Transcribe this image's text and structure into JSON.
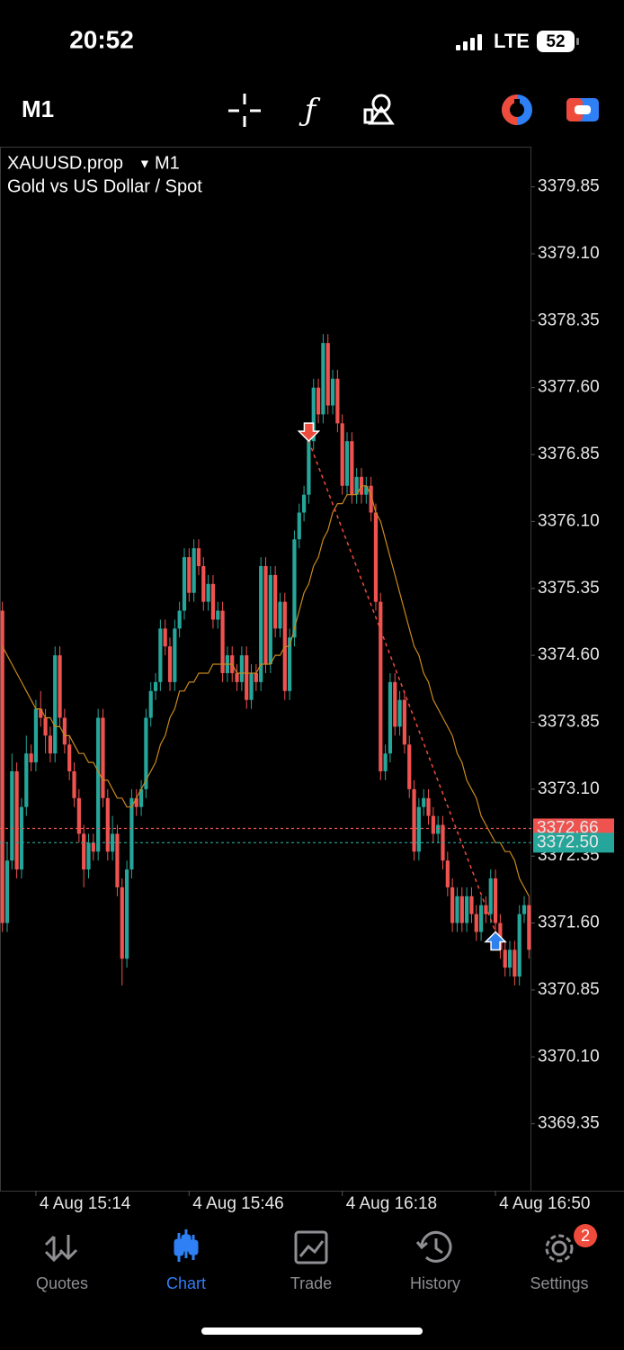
{
  "status_bar": {
    "time": "20:52",
    "network": "LTE",
    "battery": "52"
  },
  "toolbar": {
    "timeframe": "M1"
  },
  "chart_data": {
    "type": "candlestick",
    "symbol": "XAUUSD.prop",
    "timeframe": "M1",
    "description": "Gold vs US Dollar / Spot",
    "up_color": "#26a69a",
    "down_color": "#ef5350",
    "ma_color": "#c98a1e",
    "ylim": [
      3368.6,
      3380.3
    ],
    "yticks": [
      3379.85,
      {
        "value": 3379.1,
        "label": "3379.10"
      },
      3378.35,
      {
        "value": 3377.6,
        "label": "3377.60"
      },
      3376.85,
      {
        "value": 3376.1,
        "label": "3376.10"
      },
      3375.35,
      {
        "value": 3374.6,
        "label": "3374.60"
      },
      3373.85,
      {
        "value": 3373.1,
        "label": "3373.10"
      },
      3372.35,
      {
        "value": 3371.6,
        "label": "3371.60"
      },
      3370.85,
      {
        "value": 3370.1,
        "label": "3370.10"
      },
      3369.35
    ],
    "ask": 3372.66,
    "ask_color": "#ef5350",
    "bid": {
      "value": 3372.5,
      "label": "3372.50"
    },
    "bid_color": "#26a69a",
    "deal": {
      "entry": 3377.0,
      "exit": 3371.5,
      "entry_bar": 64,
      "exit_bar": 103,
      "entry_color": "#ef4b3c",
      "exit_color": "#2f80ed"
    },
    "categories": [
      null,
      null,
      null,
      null,
      null,
      null,
      null,
      "4 Aug 15:14",
      null,
      null,
      null,
      null,
      null,
      null,
      null,
      null,
      null,
      null,
      null,
      null,
      null,
      null,
      null,
      null,
      null,
      null,
      null,
      null,
      null,
      null,
      null,
      null,
      null,
      null,
      null,
      null,
      null,
      null,
      null,
      "4 Aug 15:46",
      null,
      null,
      null,
      null,
      null,
      null,
      null,
      null,
      null,
      null,
      null,
      null,
      null,
      null,
      null,
      null,
      null,
      null,
      null,
      null,
      null,
      null,
      null,
      null,
      null,
      null,
      null,
      null,
      null,
      null,
      null,
      "4 Aug 16:18",
      null,
      null,
      null,
      null,
      null,
      null,
      null,
      null,
      null,
      null,
      null,
      null,
      null,
      null,
      null,
      null,
      null,
      null,
      null,
      null,
      null,
      null,
      null,
      null,
      null,
      null,
      null,
      null,
      null,
      null,
      null,
      "4 Aug 16:50",
      null,
      null,
      null,
      null,
      null,
      null,
      null
    ],
    "ohlc": [
      [
        3375.1,
        3375.2,
        3371.5,
        3371.6
      ],
      [
        3371.6,
        3372.5,
        3371.5,
        3372.3
      ],
      [
        3372.3,
        3373.5,
        3372.2,
        3373.3
      ],
      [
        3373.3,
        3373.4,
        3372.1,
        3372.2
      ],
      [
        3372.2,
        3373.0,
        3372.1,
        3372.9
      ],
      [
        3372.9,
        3373.7,
        3372.8,
        3373.5
      ],
      [
        3373.5,
        3373.6,
        3373.3,
        3373.4
      ],
      [
        3373.4,
        3374.1,
        3373.3,
        3374.0
      ],
      [
        3374.0,
        3374.2,
        3373.8,
        3373.9
      ],
      [
        3373.9,
        3374.0,
        3373.5,
        3373.7
      ],
      [
        3373.7,
        3373.8,
        3373.4,
        3373.5
      ],
      [
        3373.5,
        3374.7,
        3373.4,
        3374.6
      ],
      [
        3374.6,
        3374.7,
        3373.8,
        3373.9
      ],
      [
        3373.9,
        3374.0,
        3373.5,
        3373.6
      ],
      [
        3373.6,
        3373.7,
        3373.2,
        3373.3
      ],
      [
        3373.3,
        3373.4,
        3372.9,
        3373.0
      ],
      [
        3373.0,
        3373.1,
        3372.5,
        3372.6
      ],
      [
        3372.6,
        3372.7,
        3372.0,
        3372.2
      ],
      [
        3372.2,
        3372.6,
        3372.1,
        3372.5
      ],
      [
        3372.5,
        3372.6,
        3372.3,
        3372.4
      ],
      [
        3372.4,
        3374.0,
        3372.3,
        3373.9
      ],
      [
        3373.9,
        3374.0,
        3372.9,
        3373.0
      ],
      [
        3373.0,
        3373.1,
        3372.3,
        3372.4
      ],
      [
        3372.4,
        3372.8,
        3372.3,
        3372.6
      ],
      [
        3372.6,
        3372.7,
        3371.9,
        3372.0
      ],
      [
        3372.0,
        3372.1,
        3370.9,
        3371.2
      ],
      [
        3371.2,
        3372.3,
        3371.1,
        3372.2
      ],
      [
        3372.2,
        3373.1,
        3372.1,
        3373.0
      ],
      [
        3373.0,
        3373.1,
        3372.8,
        3372.9
      ],
      [
        3372.9,
        3373.2,
        3372.8,
        3373.1
      ],
      [
        3373.1,
        3374.0,
        3373.0,
        3373.9
      ],
      [
        3373.9,
        3374.3,
        3373.8,
        3374.2
      ],
      [
        3374.2,
        3374.4,
        3374.1,
        3374.3
      ],
      [
        3374.3,
        3375.0,
        3374.2,
        3374.9
      ],
      [
        3374.9,
        3375.0,
        3374.6,
        3374.7
      ],
      [
        3374.7,
        3374.8,
        3374.2,
        3374.3
      ],
      [
        3374.3,
        3375.0,
        3374.2,
        3374.9
      ],
      [
        3374.9,
        3375.2,
        3374.8,
        3375.1
      ],
      [
        3375.1,
        3375.8,
        3375.0,
        3375.7
      ],
      [
        3375.7,
        3375.8,
        3375.2,
        3375.3
      ],
      [
        3375.3,
        3375.9,
        3375.2,
        3375.8
      ],
      [
        3375.8,
        3375.9,
        3375.5,
        3375.6
      ],
      [
        3375.6,
        3375.7,
        3375.1,
        3375.2
      ],
      [
        3375.2,
        3375.5,
        3375.1,
        3375.4
      ],
      [
        3375.4,
        3375.5,
        3374.9,
        3375.0
      ],
      [
        3375.0,
        3375.2,
        3374.9,
        3375.1
      ],
      [
        3375.1,
        3375.2,
        3374.3,
        3374.4
      ],
      [
        3374.4,
        3374.7,
        3374.3,
        3374.6
      ],
      [
        3374.6,
        3374.7,
        3374.3,
        3374.4
      ],
      [
        3374.4,
        3374.5,
        3374.2,
        3374.3
      ],
      [
        3374.3,
        3374.7,
        3374.2,
        3374.6
      ],
      [
        3374.6,
        3374.7,
        3374.0,
        3374.1
      ],
      [
        3374.1,
        3374.5,
        3374.0,
        3374.4
      ],
      [
        3374.4,
        3374.5,
        3374.2,
        3374.3
      ],
      [
        3374.3,
        3375.7,
        3374.2,
        3375.6
      ],
      [
        3375.6,
        3375.7,
        3374.4,
        3374.5
      ],
      [
        3374.5,
        3375.6,
        3374.4,
        3375.5
      ],
      [
        3375.5,
        3375.6,
        3374.8,
        3374.9
      ],
      [
        3374.9,
        3375.3,
        3374.8,
        3375.2
      ],
      [
        3375.2,
        3375.3,
        3374.1,
        3374.2
      ],
      [
        3374.2,
        3374.9,
        3374.1,
        3374.8
      ],
      [
        3374.8,
        3376.0,
        3374.7,
        3375.9
      ],
      [
        3375.9,
        3376.3,
        3375.8,
        3376.2
      ],
      [
        3376.2,
        3376.5,
        3376.1,
        3376.4
      ],
      [
        3376.4,
        3377.1,
        3376.3,
        3377.0
      ],
      [
        3377.0,
        3377.7,
        3376.9,
        3377.6
      ],
      [
        3377.6,
        3377.7,
        3377.2,
        3377.3
      ],
      [
        3377.3,
        3378.2,
        3377.2,
        3378.1
      ],
      [
        3378.1,
        3378.2,
        3377.3,
        3377.4
      ],
      [
        3377.4,
        3377.8,
        3377.3,
        3377.7
      ],
      [
        3377.7,
        3377.8,
        3377.1,
        3377.2
      ],
      [
        3377.2,
        3377.3,
        3376.4,
        3376.5
      ],
      [
        3376.5,
        3377.1,
        3376.4,
        3377.0
      ],
      [
        3377.0,
        3377.1,
        3376.3,
        3376.4
      ],
      [
        3376.4,
        3376.7,
        3376.3,
        3376.6
      ],
      [
        3376.6,
        3376.7,
        3376.3,
        3376.4
      ],
      [
        3376.4,
        3376.6,
        3376.3,
        3376.5
      ],
      [
        3376.5,
        3376.6,
        3376.1,
        3376.2
      ],
      [
        3376.2,
        3376.3,
        3375.1,
        3375.2
      ],
      [
        3375.2,
        3375.3,
        3373.2,
        3373.3
      ],
      [
        3373.3,
        3373.6,
        3373.2,
        3373.5
      ],
      [
        3373.5,
        3374.4,
        3373.4,
        3374.3
      ],
      [
        3374.3,
        3374.4,
        3373.7,
        3373.8
      ],
      [
        3373.8,
        3374.2,
        3373.7,
        3374.1
      ],
      [
        3374.1,
        3374.2,
        3373.5,
        3373.6
      ],
      [
        3373.6,
        3373.7,
        3373.0,
        3373.1
      ],
      [
        3373.1,
        3373.2,
        3372.3,
        3372.4
      ],
      [
        3372.4,
        3373.0,
        3372.3,
        3372.9
      ],
      [
        3372.9,
        3373.1,
        3372.8,
        3373.0
      ],
      [
        3373.0,
        3373.1,
        3372.7,
        3372.8
      ],
      [
        3372.8,
        3372.9,
        3372.5,
        3372.6
      ],
      [
        3372.6,
        3372.8,
        3372.5,
        3372.7
      ],
      [
        3372.7,
        3372.8,
        3372.2,
        3372.3
      ],
      [
        3372.3,
        3372.4,
        3371.9,
        3372.0
      ],
      [
        3372.0,
        3372.1,
        3371.5,
        3371.6
      ],
      [
        3371.6,
        3372.0,
        3371.5,
        3371.9
      ],
      [
        3371.9,
        3372.0,
        3371.5,
        3371.6
      ],
      [
        3371.6,
        3372.0,
        3371.5,
        3371.9
      ],
      [
        3371.9,
        3372.0,
        3371.6,
        3371.7
      ],
      [
        3371.7,
        3371.8,
        3371.4,
        3371.5
      ],
      [
        3371.5,
        3371.9,
        3371.4,
        3371.8
      ],
      [
        3371.8,
        3371.9,
        3371.6,
        3371.7
      ],
      [
        3371.7,
        3372.2,
        3371.6,
        3372.1
      ],
      [
        3372.1,
        3372.2,
        3371.5,
        3371.6
      ],
      [
        3371.6,
        3371.7,
        3371.2,
        3371.3
      ],
      [
        3371.3,
        3371.4,
        3371.0,
        3371.1
      ],
      [
        3371.1,
        3371.4,
        3371.0,
        3371.3
      ],
      [
        3371.3,
        3371.4,
        3370.9,
        3371.0
      ],
      [
        3371.0,
        3371.8,
        3370.9,
        3371.7
      ],
      [
        3371.7,
        3371.9,
        3371.6,
        3371.8
      ],
      [
        3371.8,
        3371.9,
        3371.2,
        3371.3
      ]
    ],
    "ma": [
      3374.7,
      3374.6,
      3374.5,
      3374.4,
      3374.3,
      3374.2,
      3374.1,
      3374.0,
      3374.0,
      3373.9,
      3373.9,
      3373.8,
      3373.8,
      3373.7,
      3373.7,
      3373.6,
      3373.5,
      3373.5,
      3373.4,
      3373.4,
      3373.3,
      3373.2,
      3373.2,
      3373.1,
      3373.0,
      3373.0,
      3372.9,
      3372.9,
      3373.0,
      3373.1,
      3373.2,
      3373.3,
      3373.4,
      3373.6,
      3373.7,
      3373.9,
      3374.0,
      3374.2,
      3374.2,
      3374.3,
      3374.3,
      3374.4,
      3374.4,
      3374.4,
      3374.5,
      3374.5,
      3374.5,
      3374.5,
      3374.5,
      3374.4,
      3374.4,
      3374.4,
      3374.4,
      3374.4,
      3374.5,
      3374.5,
      3374.5,
      3374.6,
      3374.6,
      3374.7,
      3374.7,
      3374.9,
      3375.1,
      3375.3,
      3375.4,
      3375.6,
      3375.7,
      3375.9,
      3376.0,
      3376.2,
      3376.3,
      3376.3,
      3376.4,
      3376.4,
      3376.4,
      3376.5,
      3376.5,
      3376.4,
      3376.2,
      3376.1,
      3375.9,
      3375.7,
      3375.5,
      3375.3,
      3375.1,
      3374.9,
      3374.7,
      3374.6,
      3374.4,
      3374.3,
      3374.1,
      3374.0,
      3373.9,
      3373.8,
      3373.7,
      3373.5,
      3373.4,
      3373.2,
      3373.1,
      3373.0,
      3372.8,
      3372.7,
      3372.6,
      3372.5,
      3372.5,
      3372.4,
      3372.4,
      3372.3,
      3372.1,
      3372.0,
      3371.9
    ]
  },
  "tab_bar": {
    "tabs": [
      "Quotes",
      "Chart",
      "Trade",
      "History",
      "Settings"
    ],
    "active_tab": "Chart",
    "active_color": "#2f7ff5",
    "inactive_color": "#8e8e93",
    "settings_badge": "2"
  }
}
